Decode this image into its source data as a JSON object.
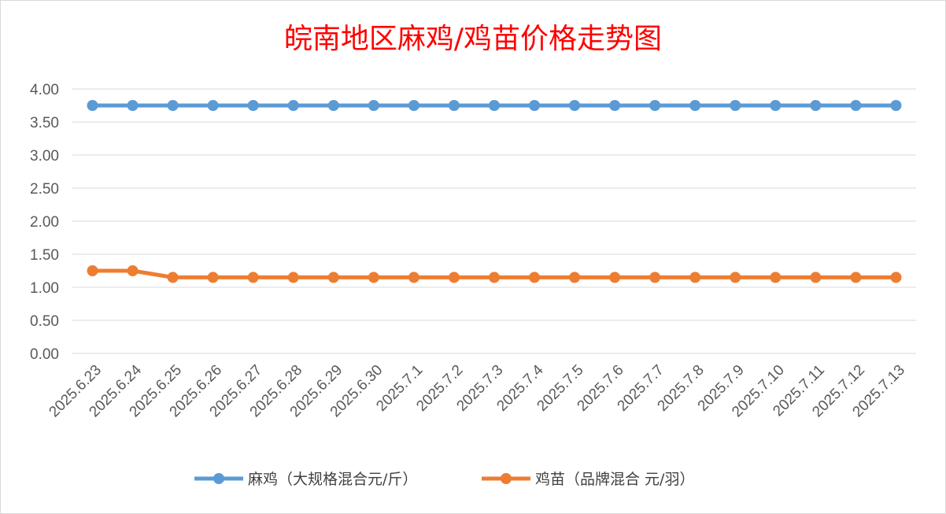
{
  "chart_data": {
    "type": "line",
    "title": "皖南地区麻鸡/鸡苗价格走势图",
    "categories": [
      "2025.6.23",
      "2025.6.24",
      "2025.6.25",
      "2025.6.26",
      "2025.6.27",
      "2025.6.28",
      "2025.6.29",
      "2025.6.30",
      "2025.7.1",
      "2025.7.2",
      "2025.7.3",
      "2025.7.4",
      "2025.7.5",
      "2025.7.6",
      "2025.7.7",
      "2025.7.8",
      "2025.7.9",
      "2025.7.10",
      "2025.7.11",
      "2025.7.12",
      "2025.7.13"
    ],
    "series": [
      {
        "name": "麻鸡（大规格混合元/斤）",
        "color": "#5b9bd5",
        "values": [
          3.75,
          3.75,
          3.75,
          3.75,
          3.75,
          3.75,
          3.75,
          3.75,
          3.75,
          3.75,
          3.75,
          3.75,
          3.75,
          3.75,
          3.75,
          3.75,
          3.75,
          3.75,
          3.75,
          3.75,
          3.75
        ]
      },
      {
        "name": "鸡苗（品牌混合 元/羽）",
        "color": "#ed7d31",
        "values": [
          1.25,
          1.25,
          1.15,
          1.15,
          1.15,
          1.15,
          1.15,
          1.15,
          1.15,
          1.15,
          1.15,
          1.15,
          1.15,
          1.15,
          1.15,
          1.15,
          1.15,
          1.15,
          1.15,
          1.15,
          1.15
        ]
      }
    ],
    "ylim": [
      0,
      4
    ],
    "yticks": [
      "0.00",
      "0.50",
      "1.00",
      "1.50",
      "2.00",
      "2.50",
      "3.00",
      "3.50",
      "4.00"
    ],
    "xlabel": "",
    "ylabel": "",
    "grid": true,
    "legend_position": "bottom"
  }
}
